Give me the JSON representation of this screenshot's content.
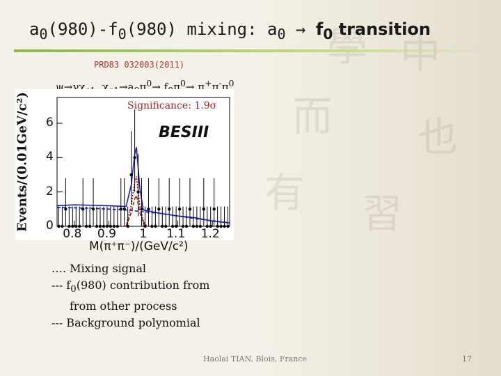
{
  "slide": {
    "title_prefix": "a",
    "title_sub1": "0",
    "title_mid1": "(980)-f",
    "title_sub2": "0",
    "title_mid2": "(980) mixing: a",
    "title_sub3": "0",
    "title_arrow": " → ",
    "title_bold": "f",
    "title_sub4": "0",
    "title_suffix": " transition",
    "reference": "PRD83 032003(2011)",
    "process": {
      "p1": "ψ→γχ",
      "s1": "c1",
      "p2": ", χ",
      "s2": "c1",
      "p3": "→a",
      "s3": "0",
      "p4": "π",
      "u4": "0",
      "p5": "→ f",
      "s5": "0",
      "p6": "π",
      "u6": "0",
      "p7": "→ π",
      "u7": "+",
      "p8": "π",
      "u8": "-",
      "p9": "π",
      "u9": "0"
    },
    "legend": {
      "line1": "…. Mixing signal",
      "line2a": "--- f",
      "line2sub": "0",
      "line2b": "(980) contribution from",
      "line3": "from other process",
      "line4": "--- Background polynomial"
    },
    "footer": "Haolai TIAN, Blois, France",
    "page_number": "17"
  },
  "chart_data": {
    "type": "scatter",
    "significance": "Significance:  1.9σ",
    "experiment_label": "BESIII",
    "ylabel": "Events/(0.01GeV/c²)",
    "xlabel": "M(π⁺π⁻)/(GeV/c²)",
    "xlim": [
      0.75,
      1.25
    ],
    "ylim": [
      0,
      7.5
    ],
    "x_ticks": [
      "0.8",
      "0.9",
      "1",
      "1.1",
      "1.2"
    ],
    "y_ticks": [
      "0",
      "2",
      "4",
      "6"
    ],
    "points": [
      {
        "x": 0.755,
        "y": 0
      },
      {
        "x": 0.765,
        "y": 0
      },
      {
        "x": 0.775,
        "y": 1
      },
      {
        "x": 0.785,
        "y": 0
      },
      {
        "x": 0.795,
        "y": 0
      },
      {
        "x": 0.805,
        "y": 0
      },
      {
        "x": 0.815,
        "y": 0
      },
      {
        "x": 0.825,
        "y": 1
      },
      {
        "x": 0.835,
        "y": 0
      },
      {
        "x": 0.845,
        "y": 0
      },
      {
        "x": 0.855,
        "y": 1
      },
      {
        "x": 0.865,
        "y": 0
      },
      {
        "x": 0.875,
        "y": 0
      },
      {
        "x": 0.885,
        "y": 0
      },
      {
        "x": 0.895,
        "y": 0
      },
      {
        "x": 0.905,
        "y": 0
      },
      {
        "x": 0.915,
        "y": 0
      },
      {
        "x": 0.925,
        "y": 0
      },
      {
        "x": 0.935,
        "y": 1
      },
      {
        "x": 0.945,
        "y": 1
      },
      {
        "x": 0.955,
        "y": 0
      },
      {
        "x": 0.965,
        "y": 3
      },
      {
        "x": 0.975,
        "y": 4
      },
      {
        "x": 0.985,
        "y": 2
      },
      {
        "x": 0.995,
        "y": 1
      },
      {
        "x": 1.005,
        "y": 0
      },
      {
        "x": 1.015,
        "y": 1
      },
      {
        "x": 1.025,
        "y": 0
      },
      {
        "x": 1.035,
        "y": 0
      },
      {
        "x": 1.045,
        "y": 1
      },
      {
        "x": 1.055,
        "y": 0
      },
      {
        "x": 1.065,
        "y": 0
      },
      {
        "x": 1.075,
        "y": 1
      },
      {
        "x": 1.085,
        "y": 0
      },
      {
        "x": 1.095,
        "y": 0
      },
      {
        "x": 1.105,
        "y": 1
      },
      {
        "x": 1.115,
        "y": 0
      },
      {
        "x": 1.125,
        "y": 0
      },
      {
        "x": 1.135,
        "y": 1
      },
      {
        "x": 1.145,
        "y": 0
      },
      {
        "x": 1.155,
        "y": 0
      },
      {
        "x": 1.165,
        "y": 0
      },
      {
        "x": 1.175,
        "y": 1
      },
      {
        "x": 1.185,
        "y": 0
      },
      {
        "x": 1.195,
        "y": 0
      },
      {
        "x": 1.205,
        "y": 1
      },
      {
        "x": 1.215,
        "y": 0
      },
      {
        "x": 1.225,
        "y": 0
      },
      {
        "x": 1.235,
        "y": 0
      },
      {
        "x": 1.245,
        "y": 0
      }
    ],
    "series": [
      {
        "style": "solid",
        "color": "#1a1ad0",
        "x": [
          0.75,
          0.8,
          0.9,
          0.95,
          0.965,
          0.975,
          0.98,
          0.99,
          1.0,
          1.05,
          1.1,
          1.15,
          1.2,
          1.25
        ],
        "y": [
          1.2,
          1.25,
          1.2,
          1.15,
          2.4,
          4.2,
          4.6,
          2.2,
          0.95,
          0.75,
          0.6,
          0.5,
          0.3,
          0.2
        ]
      },
      {
        "style": "dotted",
        "color": "#c00000",
        "x": [
          0.95,
          0.965,
          0.975,
          0.98,
          0.99,
          1.0,
          1.01
        ],
        "y": [
          0,
          1.2,
          2.6,
          2.9,
          1.2,
          0.3,
          0
        ]
      },
      {
        "style": "dashed",
        "color": "#7a3010",
        "x": [
          0.95,
          0.965,
          0.975,
          0.98,
          0.99,
          1.0,
          1.01
        ],
        "y": [
          0,
          0.8,
          1.6,
          1.8,
          0.8,
          0.2,
          0
        ]
      },
      {
        "style": "dashed",
        "color": "#1a1ad0",
        "x": [
          0.75,
          0.85,
          0.95,
          1.05,
          1.15,
          1.25
        ],
        "y": [
          1.1,
          1.05,
          0.95,
          0.75,
          0.45,
          0.2
        ]
      }
    ],
    "colors": {
      "title_rule": "#8fb44a",
      "signif": "#b02020",
      "reference": "#b03030"
    }
  }
}
